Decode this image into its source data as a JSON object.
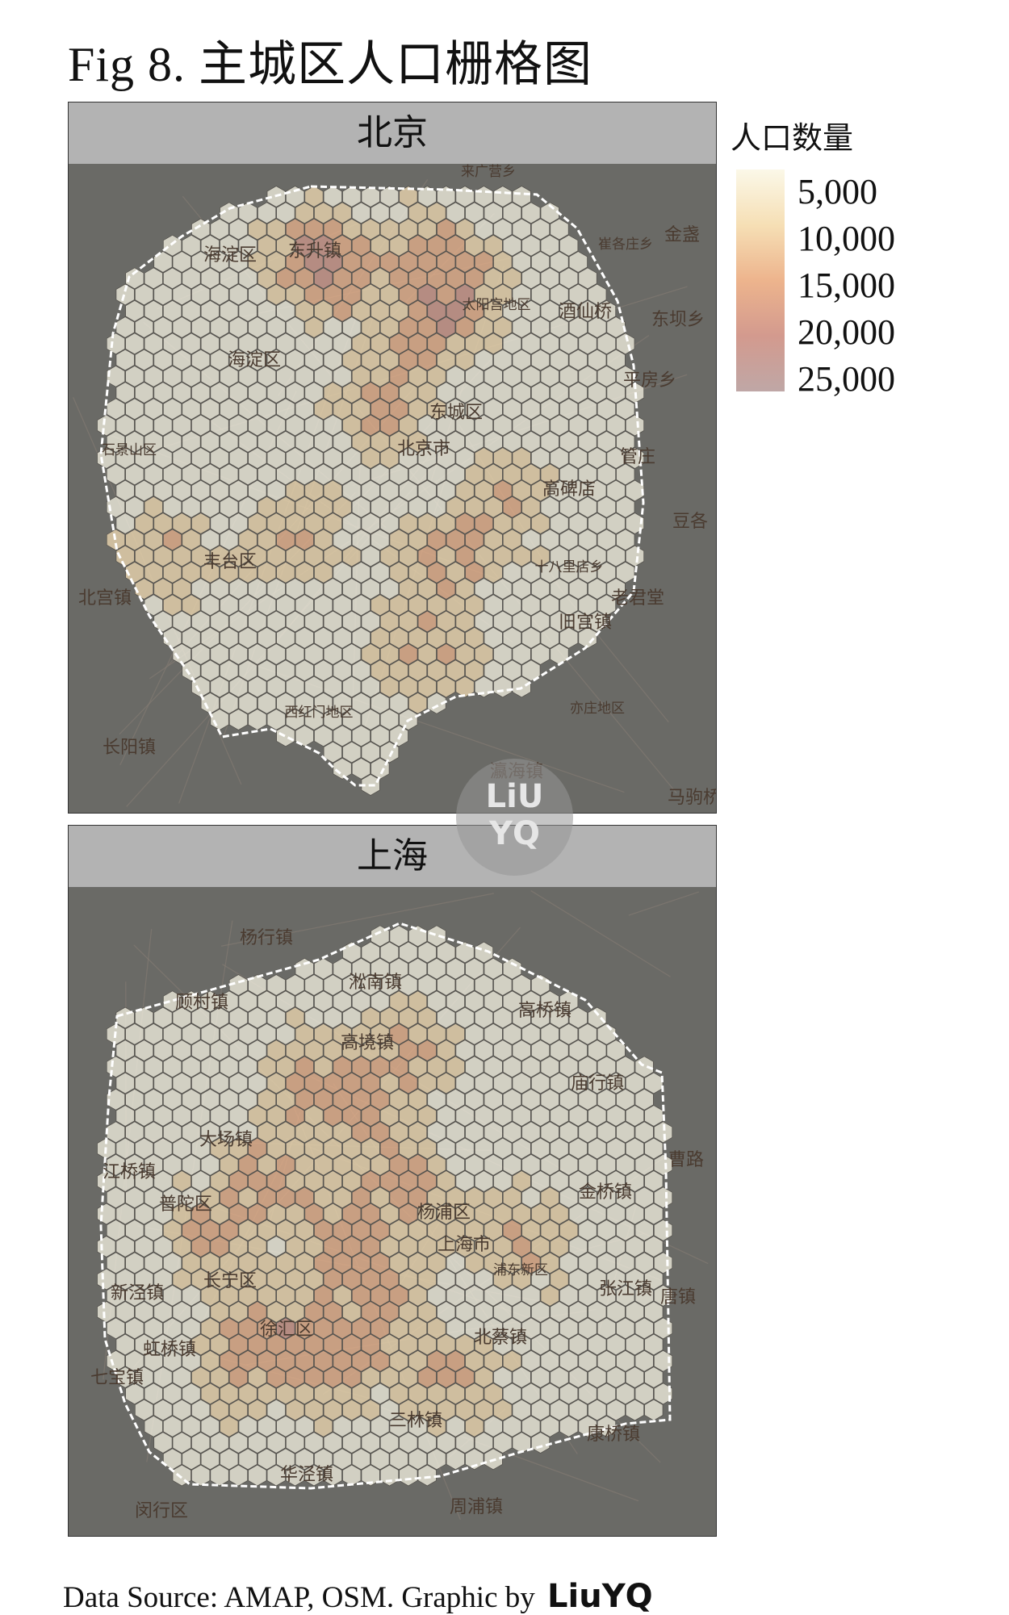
{
  "title": "Fig 8. 主城区人口栅格图",
  "panels": [
    {
      "name": "北京",
      "labels": [
        "来广营乡",
        "崔各庄乡",
        "金盏",
        "东坝乡",
        "平房乡",
        "海淀区",
        "东升镇",
        "太阳宫地区",
        "酒仙桥",
        "海淀区",
        "东城区",
        "石景山区",
        "北京市",
        "高碑店",
        "管庄",
        "豆各",
        "丰台区",
        "北宫镇",
        "十八里店乡",
        "老君堂",
        "旧宫镇",
        "亦庄地区",
        "西红门地区",
        "长阳镇",
        "瀛海镇",
        "马驹桥"
      ]
    },
    {
      "name": "上海",
      "labels": [
        "杨行镇",
        "顾村镇",
        "淞南镇",
        "高桥镇",
        "高境镇",
        "庙行镇",
        "大场镇",
        "江桥镇",
        "普陀区",
        "杨浦区",
        "金桥镇",
        "上海市",
        "长宁区",
        "浦东新区",
        "张江镇",
        "新泾镇",
        "徐汇区",
        "北蔡镇",
        "虹桥镇",
        "唐镇",
        "七宝镇",
        "三林镇",
        "康桥镇",
        "华泾镇",
        "闵行区",
        "周浦镇",
        "曹路"
      ]
    }
  ],
  "legend": {
    "title": "人口数量",
    "ticks": [
      "5,000",
      "10,000",
      "15,000",
      "20,000",
      "25,000"
    ],
    "colors": [
      "#fbf8e8",
      "#f6dfb5",
      "#edb48d",
      "#d39a8e",
      "#bfa7a6"
    ]
  },
  "watermark": {
    "line1": "LiU",
    "line2": "YQ"
  },
  "footer": {
    "source": "Data Source: AMAP, OSM. Graphic by",
    "author": "LiuYQ"
  }
}
